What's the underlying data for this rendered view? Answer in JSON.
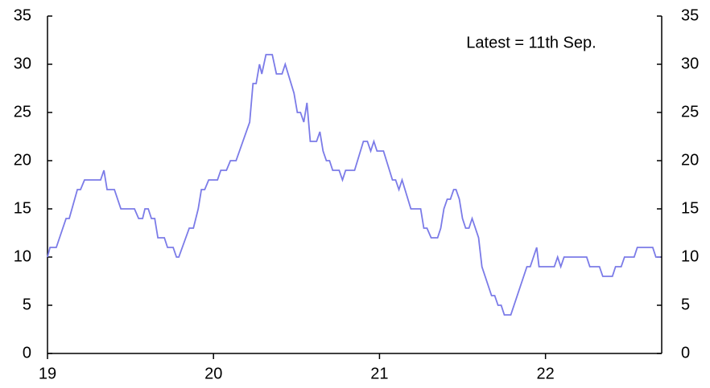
{
  "chart_data": {
    "type": "line",
    "annotation": "Latest = 11th Sep.",
    "xlim": [
      19,
      22.7
    ],
    "xticks": [
      19,
      20,
      21,
      22
    ],
    "ylim": [
      0,
      35
    ],
    "yticks": [
      0,
      5,
      10,
      15,
      20,
      25,
      30,
      35
    ],
    "y2lim": [
      0,
      35
    ],
    "y2ticks": [
      0,
      5,
      10,
      15,
      20,
      25,
      30,
      35
    ],
    "series": [
      {
        "color": "#7b7be8",
        "x": [
          19.0,
          19.015,
          19.053,
          19.112,
          19.131,
          19.18,
          19.199,
          19.223,
          19.32,
          19.34,
          19.359,
          19.403,
          19.442,
          19.524,
          19.549,
          19.573,
          19.587,
          19.607,
          19.626,
          19.646,
          19.665,
          19.704,
          19.723,
          19.757,
          19.777,
          19.791,
          19.854,
          19.879,
          19.908,
          19.927,
          19.947,
          19.971,
          20.024,
          20.044,
          20.078,
          20.102,
          20.136,
          20.218,
          20.238,
          20.257,
          20.277,
          20.291,
          20.316,
          20.354,
          20.379,
          20.413,
          20.432,
          20.485,
          20.505,
          20.524,
          20.544,
          20.563,
          20.583,
          20.621,
          20.641,
          20.66,
          20.68,
          20.699,
          20.718,
          20.757,
          20.777,
          20.796,
          20.85,
          20.903,
          20.927,
          20.947,
          20.966,
          20.985,
          21.024,
          21.078,
          21.097,
          21.117,
          21.136,
          21.189,
          21.248,
          21.267,
          21.286,
          21.311,
          21.35,
          21.369,
          21.388,
          21.408,
          21.427,
          21.447,
          21.461,
          21.481,
          21.5,
          21.519,
          21.539,
          21.558,
          21.597,
          21.617,
          21.675,
          21.694,
          21.714,
          21.733,
          21.752,
          21.791,
          21.888,
          21.908,
          21.947,
          21.961,
          22.053,
          22.073,
          22.092,
          22.112,
          22.248,
          22.267,
          22.325,
          22.345,
          22.403,
          22.422,
          22.456,
          22.476,
          22.534,
          22.553,
          22.646,
          22.665,
          22.694
        ],
        "values": [
          10,
          11,
          11,
          14,
          14,
          17,
          17,
          18,
          18,
          19,
          17,
          17,
          15,
          15,
          14,
          14,
          15,
          15,
          14,
          14,
          12,
          12,
          11,
          11,
          10,
          10,
          13,
          13,
          15,
          17,
          17,
          18,
          18,
          19,
          19,
          20,
          20,
          24,
          28,
          28,
          30,
          29,
          31,
          31,
          29,
          29,
          30,
          27,
          25,
          25,
          24,
          26,
          22,
          22,
          23,
          21,
          20,
          20,
          19,
          19,
          18,
          19,
          19,
          22,
          22,
          21,
          22,
          21,
          21,
          18,
          18,
          17,
          18,
          15,
          15,
          13,
          13,
          12,
          12,
          13,
          15,
          16,
          16,
          17,
          17,
          16,
          14,
          13,
          13,
          14,
          12,
          9,
          6,
          6,
          5,
          5,
          4,
          4,
          9,
          9,
          11,
          9,
          9,
          10,
          9,
          10,
          10,
          9,
          9,
          8,
          8,
          9,
          9,
          10,
          10,
          11,
          11,
          10,
          10
        ]
      }
    ]
  }
}
